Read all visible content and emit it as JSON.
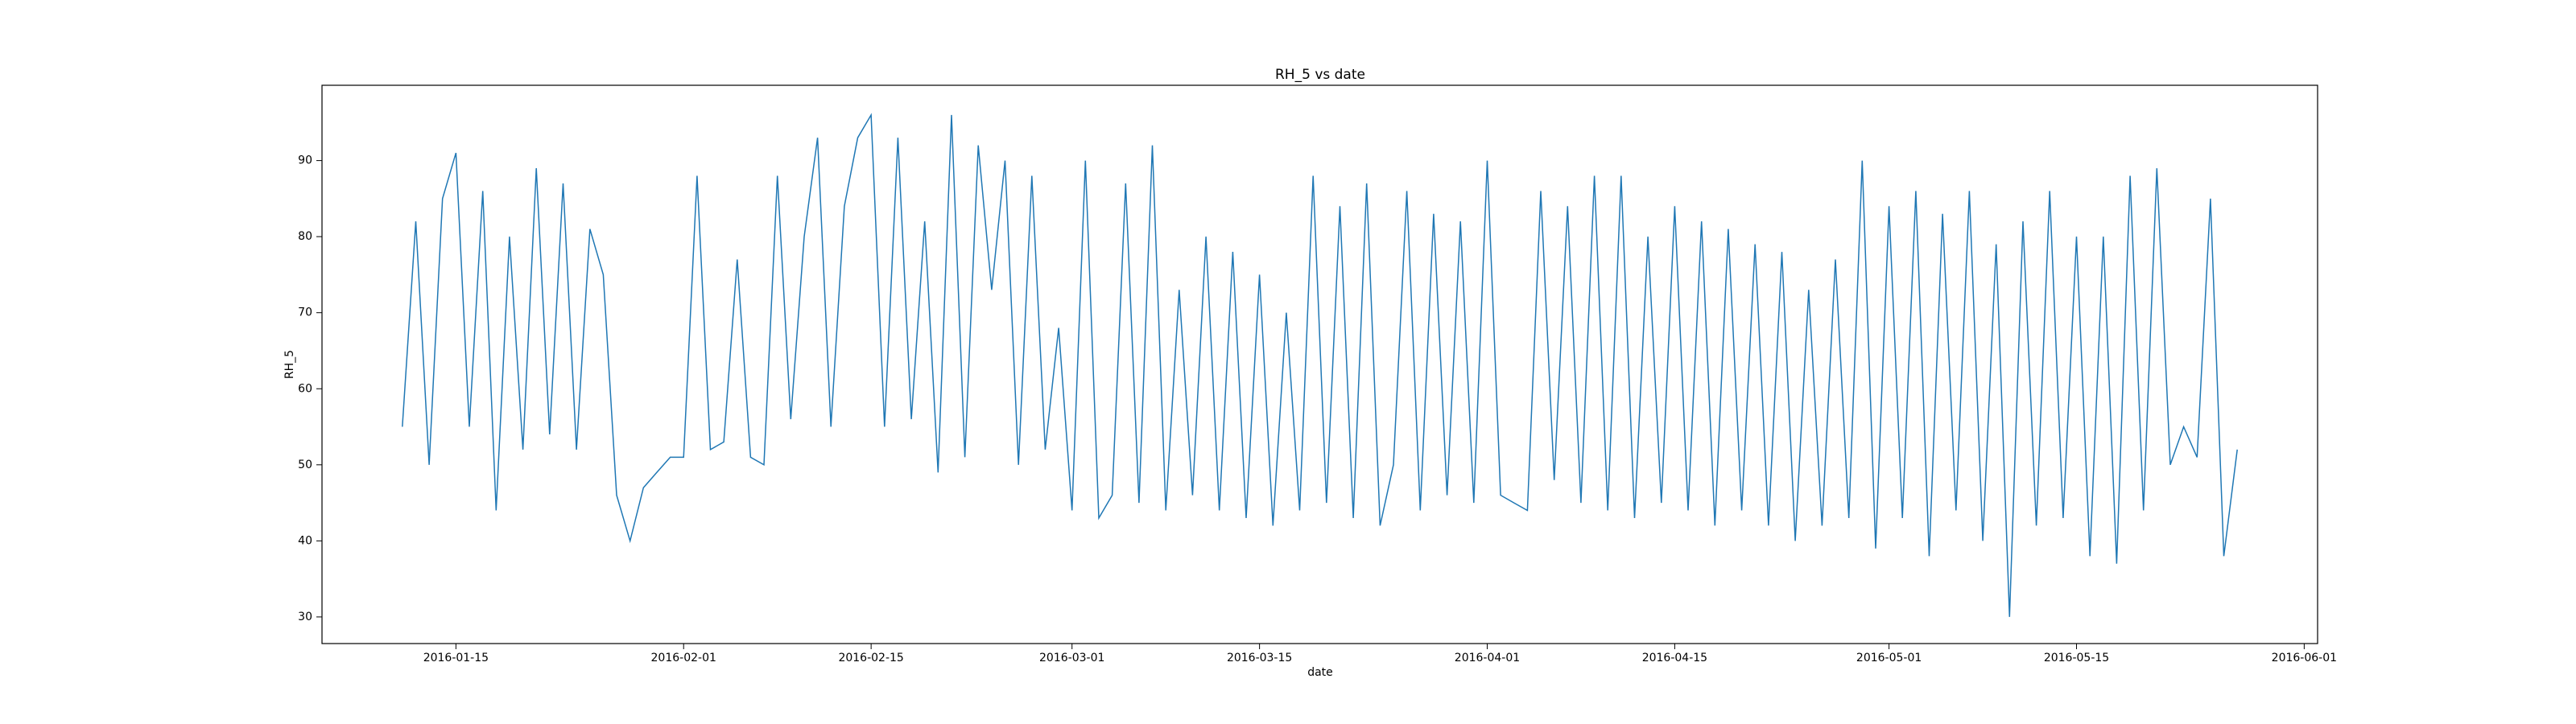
{
  "chart_data": {
    "type": "line",
    "title": "RH_5 vs date",
    "x_label": "date",
    "y_label": "RH_5",
    "x": [
      "2016-01-11",
      "2016-01-12",
      "2016-01-13",
      "2016-01-14",
      "2016-01-15",
      "2016-01-16",
      "2016-01-17",
      "2016-01-18",
      "2016-01-19",
      "2016-01-20",
      "2016-01-21",
      "2016-01-22",
      "2016-01-23",
      "2016-01-24",
      "2016-01-25",
      "2016-01-26",
      "2016-01-27",
      "2016-01-28",
      "2016-01-29",
      "2016-01-30",
      "2016-01-31",
      "2016-02-01",
      "2016-02-02",
      "2016-02-03",
      "2016-02-04",
      "2016-02-05",
      "2016-02-06",
      "2016-02-07",
      "2016-02-08",
      "2016-02-09",
      "2016-02-10",
      "2016-02-11",
      "2016-02-12",
      "2016-02-13",
      "2016-02-14",
      "2016-02-15",
      "2016-02-16",
      "2016-02-17",
      "2016-02-18",
      "2016-02-19",
      "2016-02-20",
      "2016-02-21",
      "2016-02-22",
      "2016-02-23",
      "2016-02-24",
      "2016-02-25",
      "2016-02-26",
      "2016-02-27",
      "2016-02-28",
      "2016-02-29",
      "2016-03-01",
      "2016-03-02",
      "2016-03-03",
      "2016-03-04",
      "2016-03-05",
      "2016-03-06",
      "2016-03-07",
      "2016-03-08",
      "2016-03-09",
      "2016-03-10",
      "2016-03-11",
      "2016-03-12",
      "2016-03-13",
      "2016-03-14",
      "2016-03-15",
      "2016-03-16",
      "2016-03-17",
      "2016-03-18",
      "2016-03-19",
      "2016-03-20",
      "2016-03-21",
      "2016-03-22",
      "2016-03-23",
      "2016-03-24",
      "2016-03-25",
      "2016-03-26",
      "2016-03-27",
      "2016-03-28",
      "2016-03-29",
      "2016-03-30",
      "2016-03-31",
      "2016-04-01",
      "2016-04-02",
      "2016-04-03",
      "2016-04-04",
      "2016-04-05",
      "2016-04-06",
      "2016-04-07",
      "2016-04-08",
      "2016-04-09",
      "2016-04-10",
      "2016-04-11",
      "2016-04-12",
      "2016-04-13",
      "2016-04-14",
      "2016-04-15",
      "2016-04-16",
      "2016-04-17",
      "2016-04-18",
      "2016-04-19",
      "2016-04-20",
      "2016-04-21",
      "2016-04-22",
      "2016-04-23",
      "2016-04-24",
      "2016-04-25",
      "2016-04-26",
      "2016-04-27",
      "2016-04-28",
      "2016-04-29",
      "2016-04-30",
      "2016-05-01",
      "2016-05-02",
      "2016-05-03",
      "2016-05-04",
      "2016-05-05",
      "2016-05-06",
      "2016-05-07",
      "2016-05-08",
      "2016-05-09",
      "2016-05-10",
      "2016-05-11",
      "2016-05-12",
      "2016-05-13",
      "2016-05-14",
      "2016-05-15",
      "2016-05-16",
      "2016-05-17",
      "2016-05-18",
      "2016-05-19",
      "2016-05-20",
      "2016-05-21",
      "2016-05-22",
      "2016-05-23",
      "2016-05-24",
      "2016-05-25",
      "2016-05-26",
      "2016-05-27"
    ],
    "series": [
      {
        "name": "RH_5",
        "color": "#1f77b4",
        "values": [
          55,
          82,
          50,
          85,
          91,
          55,
          86,
          44,
          80,
          52,
          89,
          54,
          87,
          52,
          81,
          75,
          46,
          40,
          47,
          49,
          51,
          51,
          88,
          52,
          53,
          77,
          51,
          50,
          88,
          56,
          80,
          93,
          55,
          84,
          93,
          96,
          55,
          93,
          56,
          82,
          49,
          96,
          51,
          92,
          73,
          90,
          50,
          88,
          52,
          68,
          44,
          90,
          43,
          46,
          87,
          45,
          92,
          44,
          73,
          46,
          80,
          44,
          78,
          43,
          75,
          42,
          70,
          44,
          88,
          45,
          84,
          43,
          87,
          42,
          50,
          86,
          44,
          83,
          46,
          82,
          45,
          90,
          46,
          45,
          44,
          86,
          48,
          84,
          45,
          88,
          44,
          88,
          43,
          80,
          45,
          84,
          44,
          82,
          42,
          81,
          44,
          79,
          42,
          78,
          40,
          73,
          42,
          77,
          43,
          90,
          39,
          84,
          43,
          86,
          38,
          83,
          44,
          86,
          40,
          79,
          30,
          82,
          42,
          86,
          43,
          80,
          38,
          80,
          37,
          88,
          44,
          89,
          50,
          55,
          51,
          85,
          38,
          52
        ]
      }
    ],
    "xlim": [
      "2016-01-05",
      "2016-06-02"
    ],
    "xticks": [
      "2016-01-15",
      "2016-02-01",
      "2016-02-15",
      "2016-03-01",
      "2016-03-15",
      "2016-04-01",
      "2016-04-15",
      "2016-05-01",
      "2016-05-15",
      "2016-06-01"
    ],
    "ylim": [
      26.5,
      99.9
    ],
    "yticks": [
      30,
      40,
      50,
      60,
      70,
      80,
      90
    ],
    "grid": false
  }
}
